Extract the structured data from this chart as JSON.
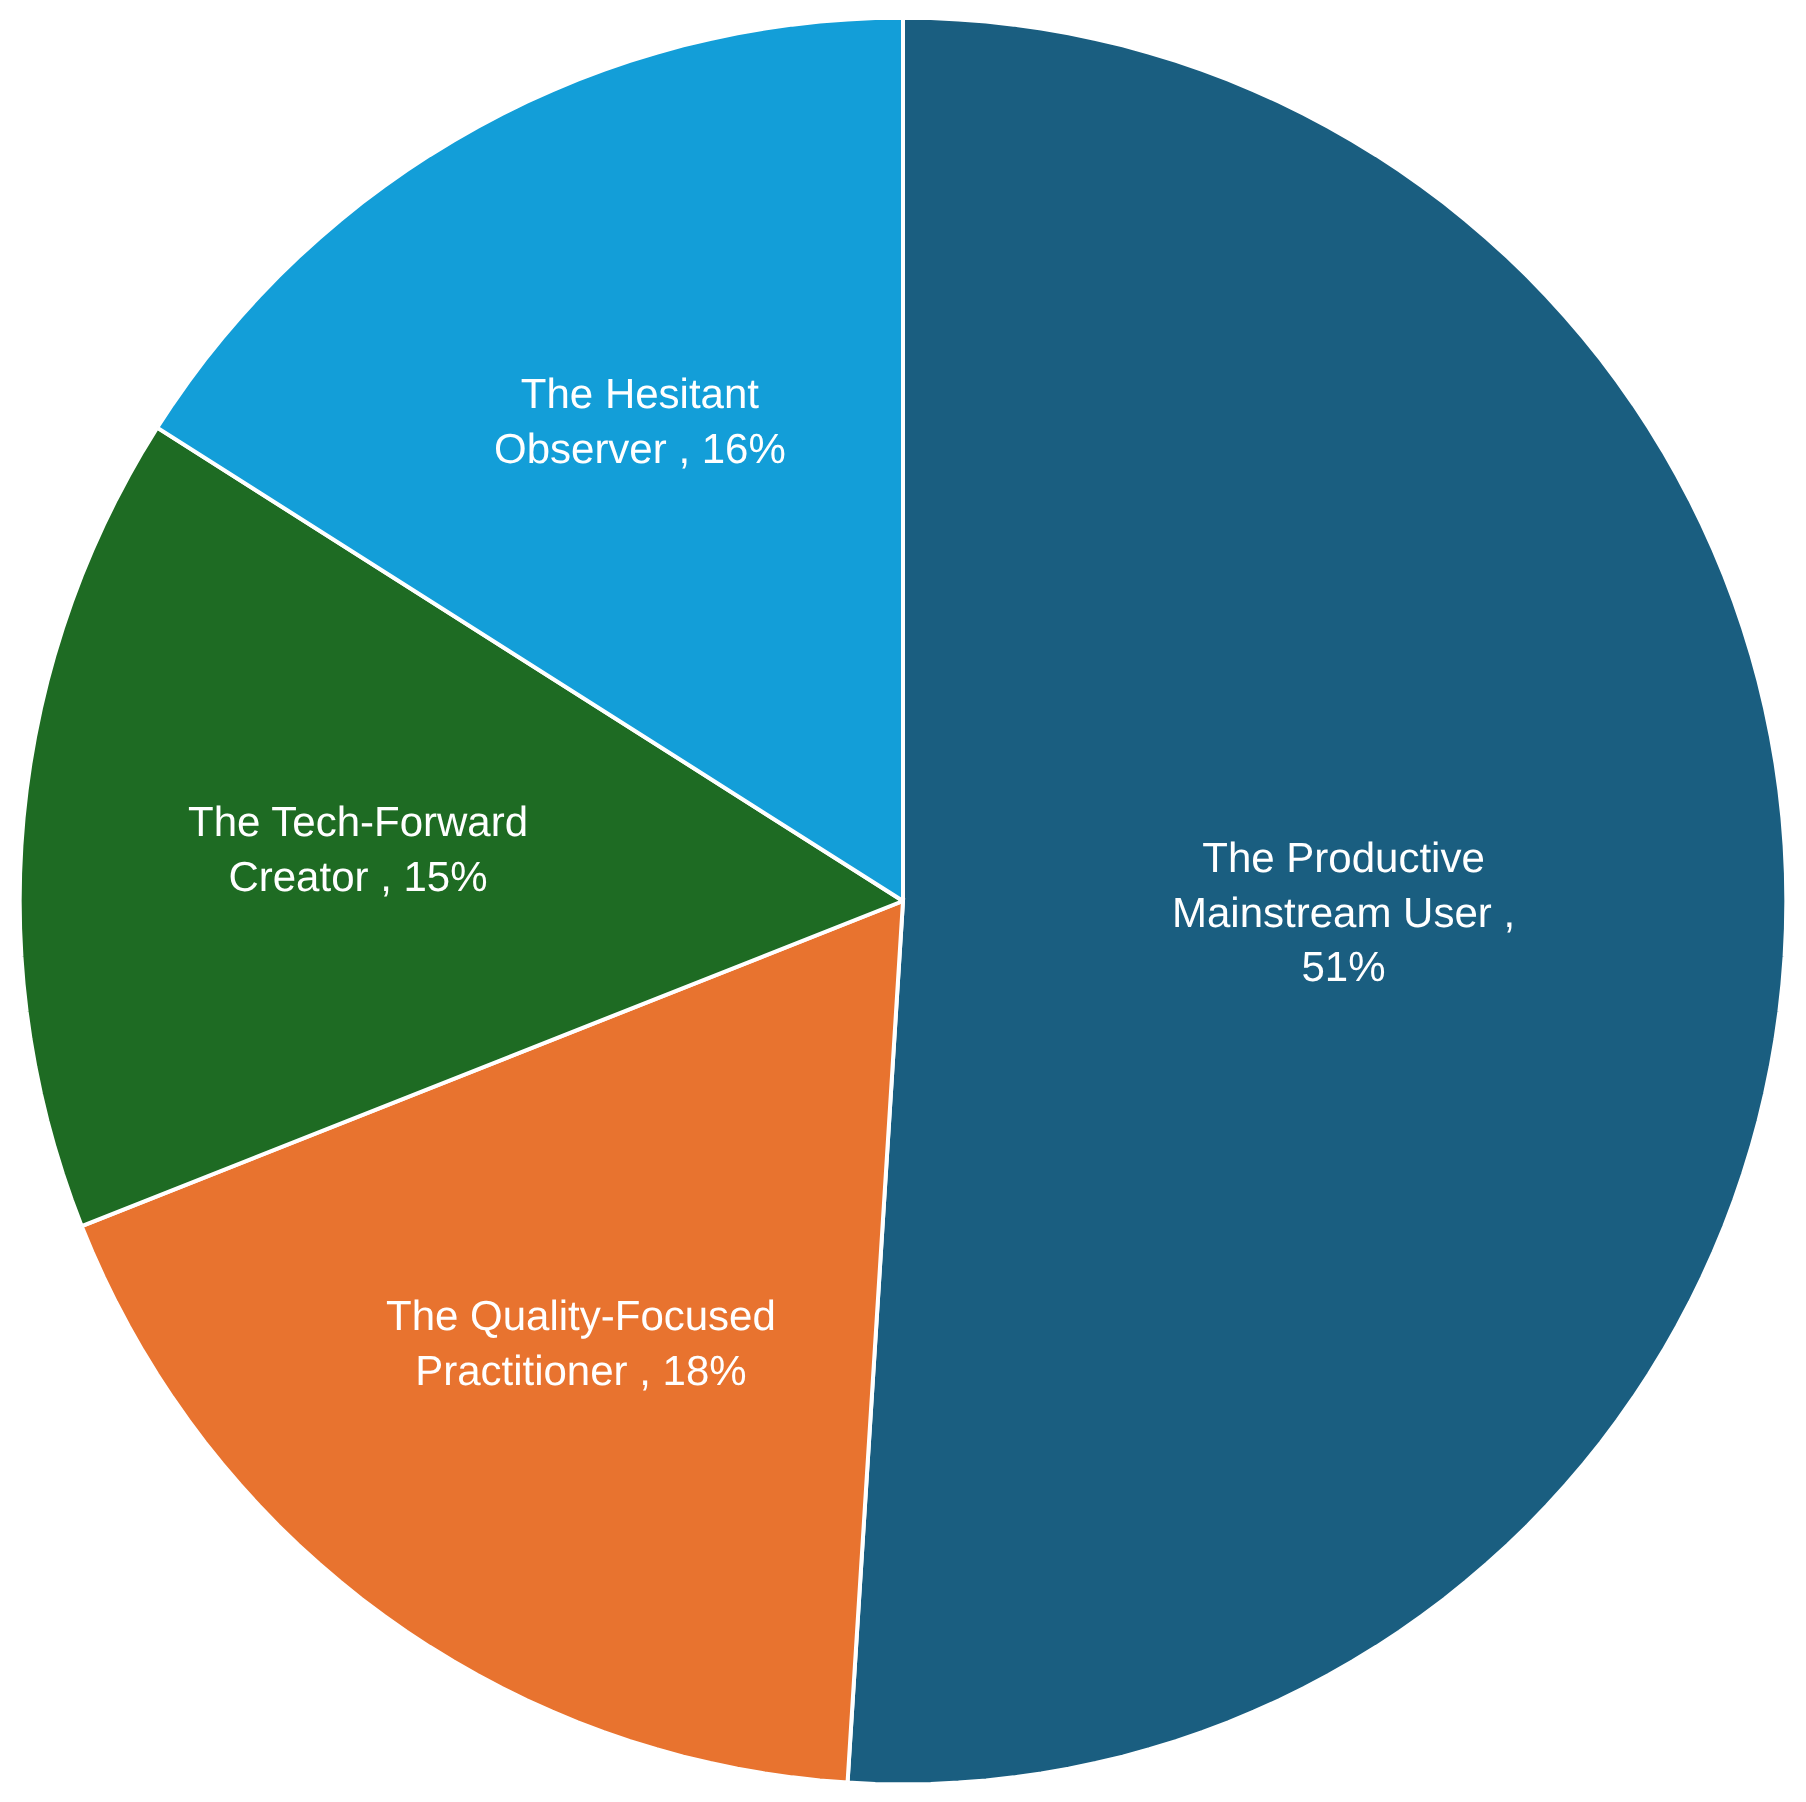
{
  "chart_data": {
    "type": "pie",
    "categories": [
      "The Productive Mainstream User",
      "The Quality-Focused Practitioner",
      "The Tech-Forward Creator",
      "The Hesitant Observer"
    ],
    "values": [
      51,
      18,
      15,
      16
    ],
    "colors": [
      "#1a5e80",
      "#e8732f",
      "#1e6b23",
      "#139ed8"
    ],
    "value_labels": [
      " , 51%",
      " , 18%",
      " , 15%",
      " , 16%"
    ]
  }
}
